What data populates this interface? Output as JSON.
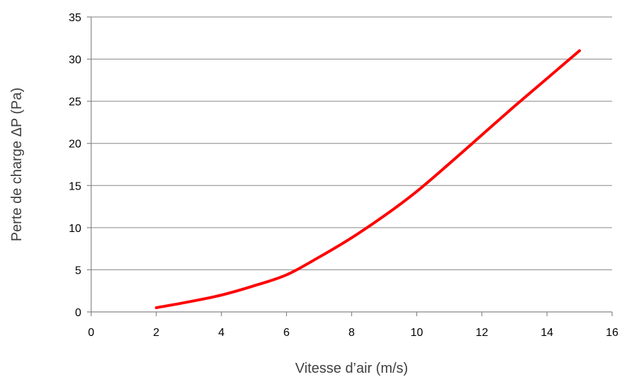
{
  "chart_data": {
    "type": "line",
    "title": "",
    "xlabel": "Vitesse d’air (m/s)",
    "ylabel": "Perte de charge ΔP (Pa)",
    "xlim": [
      0,
      16
    ],
    "ylim": [
      0,
      35
    ],
    "xticks": [
      0,
      2,
      4,
      6,
      8,
      10,
      12,
      14,
      16
    ],
    "yticks": [
      0,
      5,
      10,
      15,
      20,
      25,
      30,
      35
    ],
    "grid": "horizontal",
    "legend": "none",
    "series": [
      {
        "color": "#ff0000",
        "x": [
          2,
          3,
          4,
          5,
          6,
          7,
          8,
          9,
          10,
          11,
          12,
          13,
          14,
          15
        ],
        "y": [
          0.5,
          1.2,
          2.0,
          3.1,
          4.4,
          6.5,
          8.8,
          11.4,
          14.3,
          17.6,
          21.0,
          24.4,
          27.7,
          31.0
        ]
      }
    ]
  }
}
